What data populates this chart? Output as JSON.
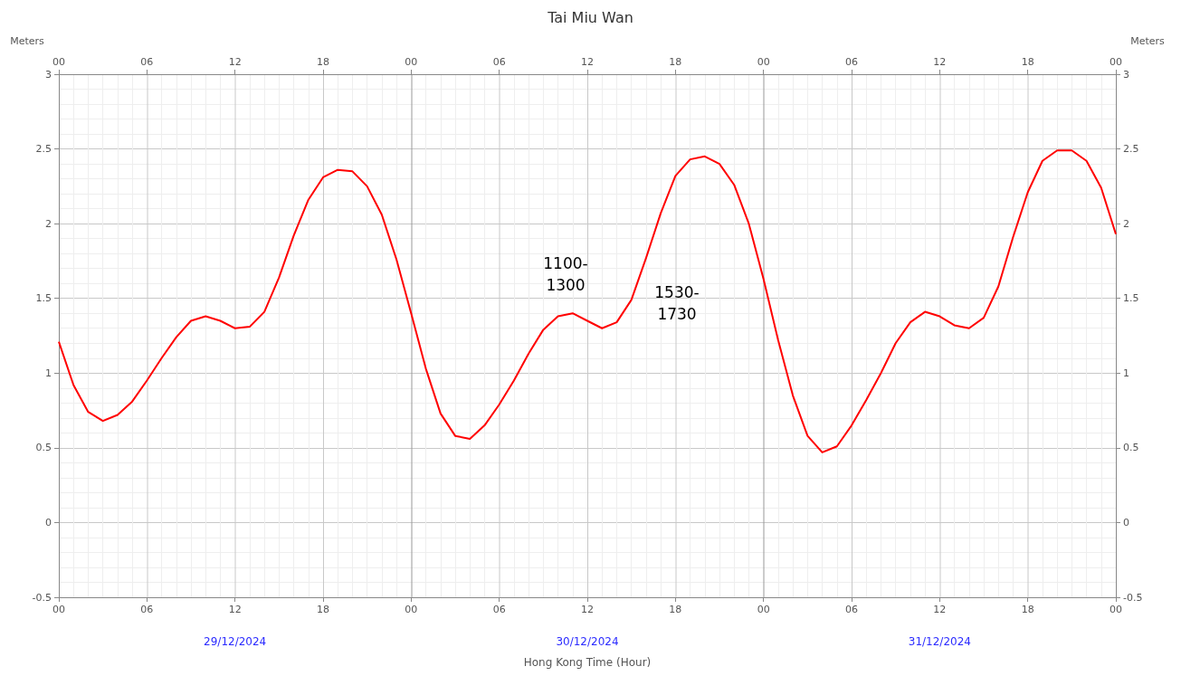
{
  "chart_data": {
    "type": "line",
    "title": "Tai Miu Wan",
    "xlabel": "Hong Kong Time (Hour)",
    "ylabel": "Meters",
    "y2label": "Meters",
    "x": [
      "2024-12-29T00:00",
      "2024-12-29T01:00",
      "2024-12-29T02:00",
      "2024-12-29T03:00",
      "2024-12-29T04:00",
      "2024-12-29T05:00",
      "2024-12-29T06:00",
      "2024-12-29T07:00",
      "2024-12-29T08:00",
      "2024-12-29T09:00",
      "2024-12-29T10:00",
      "2024-12-29T11:00",
      "2024-12-29T12:00",
      "2024-12-29T13:00",
      "2024-12-29T14:00",
      "2024-12-29T15:00",
      "2024-12-29T16:00",
      "2024-12-29T17:00",
      "2024-12-29T18:00",
      "2024-12-29T19:00",
      "2024-12-29T20:00",
      "2024-12-29T21:00",
      "2024-12-29T22:00",
      "2024-12-29T23:00",
      "2024-12-30T00:00",
      "2024-12-30T01:00",
      "2024-12-30T02:00",
      "2024-12-30T03:00",
      "2024-12-30T04:00",
      "2024-12-30T05:00",
      "2024-12-30T06:00",
      "2024-12-30T07:00",
      "2024-12-30T08:00",
      "2024-12-30T09:00",
      "2024-12-30T10:00",
      "2024-12-30T11:00",
      "2024-12-30T12:00",
      "2024-12-30T13:00",
      "2024-12-30T14:00",
      "2024-12-30T15:00",
      "2024-12-30T16:00",
      "2024-12-30T17:00",
      "2024-12-30T18:00",
      "2024-12-30T19:00",
      "2024-12-30T20:00",
      "2024-12-30T21:00",
      "2024-12-30T22:00",
      "2024-12-30T23:00",
      "2024-12-31T00:00",
      "2024-12-31T01:00",
      "2024-12-31T02:00",
      "2024-12-31T03:00",
      "2024-12-31T04:00",
      "2024-12-31T05:00",
      "2024-12-31T06:00",
      "2024-12-31T07:00",
      "2024-12-31T08:00",
      "2024-12-31T09:00",
      "2024-12-31T10:00",
      "2024-12-31T11:00",
      "2024-12-31T12:00",
      "2024-12-31T13:00",
      "2024-12-31T14:00",
      "2024-12-31T15:00",
      "2024-12-31T16:00",
      "2024-12-31T17:00",
      "2024-12-31T18:00",
      "2024-12-31T19:00",
      "2024-12-31T20:00",
      "2024-12-31T21:00",
      "2024-12-31T22:00",
      "2024-12-31T23:00",
      "2025-01-01T00:00"
    ],
    "series": [
      {
        "color": "#ff0000",
        "values": [
          1.21,
          0.92,
          0.74,
          0.68,
          0.72,
          0.81,
          0.95,
          1.1,
          1.24,
          1.35,
          1.38,
          1.35,
          1.3,
          1.31,
          1.41,
          1.64,
          1.92,
          2.16,
          2.31,
          2.36,
          2.35,
          2.25,
          2.06,
          1.76,
          1.4,
          1.03,
          0.73,
          0.58,
          0.56,
          0.65,
          0.79,
          0.95,
          1.13,
          1.29,
          1.38,
          1.4,
          1.35,
          1.3,
          1.34,
          1.49,
          1.77,
          2.07,
          2.32,
          2.43,
          2.45,
          2.4,
          2.26,
          2.0,
          1.63,
          1.22,
          0.85,
          0.58,
          0.47,
          0.51,
          0.65,
          0.82,
          1.0,
          1.2,
          1.34,
          1.41,
          1.38,
          1.32,
          1.3,
          1.37,
          1.58,
          1.91,
          2.21,
          2.42,
          2.49,
          2.49,
          2.42,
          2.24,
          1.93
        ]
      }
    ],
    "xlim": [
      "2024-12-29T00:00",
      "2025-01-01T00:00"
    ],
    "xticks": [
      {
        "value": "2024-12-29T00:00",
        "label": "00"
      },
      {
        "value": "2024-12-29T06:00",
        "label": "06"
      },
      {
        "value": "2024-12-29T12:00",
        "label": "12"
      },
      {
        "value": "2024-12-29T18:00",
        "label": "18"
      },
      {
        "value": "2024-12-30T00:00",
        "label": "00"
      },
      {
        "value": "2024-12-30T06:00",
        "label": "06"
      },
      {
        "value": "2024-12-30T12:00",
        "label": "12"
      },
      {
        "value": "2024-12-30T18:00",
        "label": "18"
      },
      {
        "value": "2024-12-31T00:00",
        "label": "00"
      },
      {
        "value": "2024-12-31T06:00",
        "label": "06"
      },
      {
        "value": "2024-12-31T12:00",
        "label": "12"
      },
      {
        "value": "2024-12-31T18:00",
        "label": "18"
      },
      {
        "value": "2025-01-01T00:00",
        "label": "00"
      }
    ],
    "x2lim": [
      "2024-12-29T00:00",
      "2025-01-01T00:00"
    ],
    "x2ticks": [
      {
        "value": "2024-12-29T00:00",
        "label": "00"
      },
      {
        "value": "2024-12-29T06:00",
        "label": "06"
      },
      {
        "value": "2024-12-29T12:00",
        "label": "12"
      },
      {
        "value": "2024-12-29T18:00",
        "label": "18"
      },
      {
        "value": "2024-12-30T00:00",
        "label": "00"
      },
      {
        "value": "2024-12-30T06:00",
        "label": "06"
      },
      {
        "value": "2024-12-30T12:00",
        "label": "12"
      },
      {
        "value": "2024-12-30T18:00",
        "label": "18"
      },
      {
        "value": "2024-12-31T00:00",
        "label": "00"
      },
      {
        "value": "2024-12-31T06:00",
        "label": "06"
      },
      {
        "value": "2024-12-31T12:00",
        "label": "12"
      },
      {
        "value": "2024-12-31T18:00",
        "label": "18"
      },
      {
        "value": "2025-01-01T00:00",
        "label": "00"
      }
    ],
    "ylim": [
      -0.5,
      3
    ],
    "yticks": [
      -0.5,
      0,
      0.5,
      1,
      1.5,
      2,
      2.5,
      3
    ],
    "y2lim": [
      -0.5,
      3
    ],
    "y2ticks": [
      -0.5,
      0,
      0.5,
      1,
      1.5,
      2,
      2.5,
      3
    ],
    "annotations": [
      "1100-\n1300",
      "1530-\n1730",
      "29/12/2024",
      "30/12/2024",
      "31/12/2024"
    ],
    "grid": true,
    "marker": "none",
    "line_style": "solid"
  }
}
